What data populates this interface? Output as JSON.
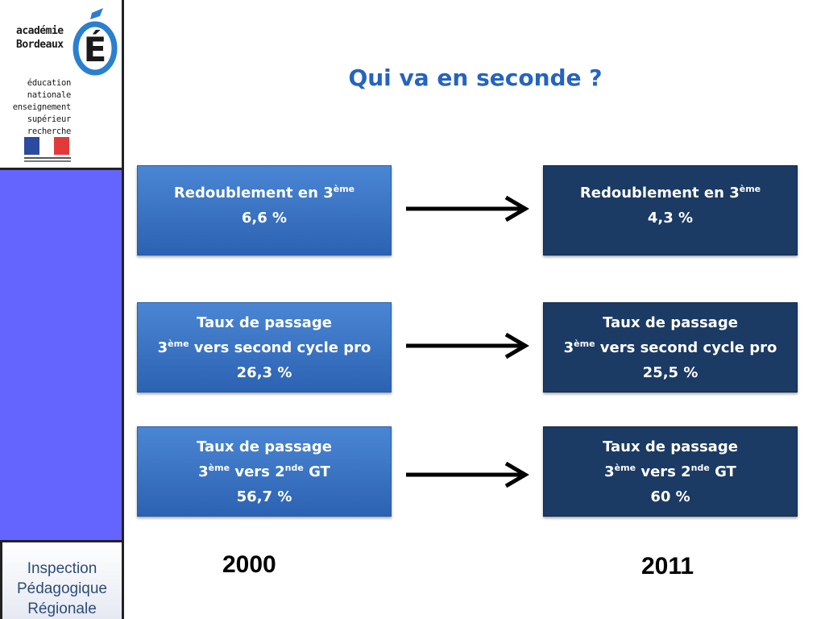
{
  "sidebar": {
    "logo": {
      "academie_line1": "académie",
      "academie_line2": "Bordeaux",
      "logo_letter": "É",
      "ministry_lines": [
        "éducation",
        "nationale",
        "enseignement",
        "supérieur",
        "recherche"
      ]
    },
    "footer_lines": [
      "Inspection",
      "Pédagogique",
      "Régionale"
    ],
    "colors": {
      "panel": "#6464ff",
      "footer_text": "#2a4c7a"
    }
  },
  "title": "Qui va en seconde ?",
  "years": {
    "left": "2000",
    "right": "2011"
  },
  "rows": [
    {
      "left": {
        "line1": "Redoublement en 3",
        "sup": "ème",
        "value": "6,6 %"
      },
      "right": {
        "line1": "Redoublement en 3",
        "sup": "ème",
        "value": "4,3 %"
      }
    },
    {
      "left": {
        "line1": "Taux de passage",
        "pre": "3",
        "sup": "ème",
        "post": " vers second cycle pro",
        "value": "26,3 %"
      },
      "right": {
        "line1": "Taux de passage",
        "pre": "3",
        "sup": "ème",
        "post": " vers second cycle pro",
        "value": "25,5 %"
      }
    },
    {
      "left": {
        "line1": "Taux de passage",
        "pre": "3",
        "sup": "ème",
        "mid": " vers 2",
        "sup2": "nde",
        "post": " GT",
        "value": "56,7 %"
      },
      "right": {
        "line1": "Taux de passage",
        "pre": "3",
        "sup": "ème",
        "mid": " vers 2",
        "sup2": "nde",
        "post": " GT",
        "value": "60 %"
      }
    }
  ],
  "colors": {
    "title": "#2563c0",
    "box_2000": "#3a74c4",
    "box_2011": "#1b3a64"
  }
}
